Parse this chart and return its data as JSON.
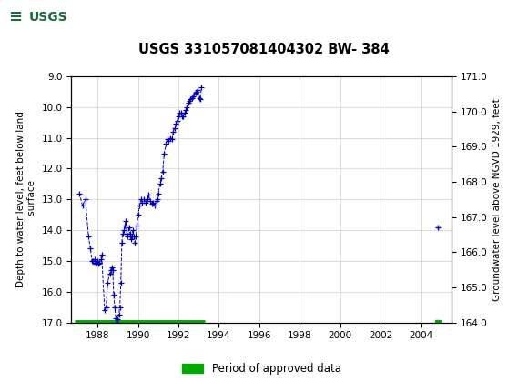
{
  "title": "USGS 331057081404302 BW- 384",
  "ylabel_left": "Depth to water level, feet below land\n surface",
  "ylabel_right": "Groundwater level above NGVD 1929, feet",
  "ylim_left": [
    17.0,
    9.0
  ],
  "ylim_right": [
    164.0,
    171.0
  ],
  "xlim": [
    1986.7,
    2005.5
  ],
  "xticks": [
    1988,
    1990,
    1992,
    1994,
    1996,
    1998,
    2000,
    2002,
    2004
  ],
  "yticks_left": [
    9.0,
    10.0,
    11.0,
    12.0,
    13.0,
    14.0,
    15.0,
    16.0,
    17.0
  ],
  "yticks_right": [
    164.0,
    165.0,
    166.0,
    167.0,
    168.0,
    169.0,
    170.0,
    171.0
  ],
  "line_color": "#0000bb",
  "approved_color": "#00aa00",
  "header_color": "#1a6b3c",
  "background_color": "#ffffff",
  "plot_bg_color": "#ffffff",
  "grid_color": "#cccccc",
  "legend_label": "Period of approved data",
  "approved_bar_x_start": 1986.85,
  "approved_bar_x_end": 1993.3,
  "approved_dot_x": 2004.85,
  "approved_bar_y": 17.0,
  "data_x": [
    1987.1,
    1987.25,
    1987.4,
    1987.55,
    1987.65,
    1987.72,
    1987.78,
    1987.84,
    1987.88,
    1987.92,
    1987.96,
    1988.0,
    1988.05,
    1988.1,
    1988.15,
    1988.2,
    1988.35,
    1988.42,
    1988.5,
    1988.6,
    1988.65,
    1988.7,
    1988.75,
    1988.8,
    1988.85,
    1988.9,
    1988.95,
    1989.0,
    1989.05,
    1989.1,
    1989.15,
    1989.2,
    1989.25,
    1989.3,
    1989.35,
    1989.4,
    1989.45,
    1989.5,
    1989.55,
    1989.6,
    1989.65,
    1989.7,
    1989.75,
    1989.8,
    1989.85,
    1989.9,
    1989.95,
    1990.0,
    1990.08,
    1990.15,
    1990.22,
    1990.3,
    1990.38,
    1990.45,
    1990.52,
    1990.6,
    1990.68,
    1990.75,
    1990.82,
    1990.9,
    1990.95,
    1991.0,
    1991.08,
    1991.15,
    1991.22,
    1991.3,
    1991.38,
    1991.45,
    1991.52,
    1991.6,
    1991.68,
    1991.75,
    1991.82,
    1991.88,
    1991.94,
    1992.0,
    1992.06,
    1992.12,
    1992.18,
    1992.24,
    1992.3,
    1992.36,
    1992.42,
    1992.48,
    1992.54,
    1992.6,
    1992.66,
    1992.72,
    1992.78,
    1992.84,
    1992.9,
    1992.96,
    1993.02,
    1993.08,
    1993.14,
    2004.85
  ],
  "data_y": [
    12.8,
    13.2,
    13.0,
    14.2,
    14.6,
    15.0,
    15.0,
    14.95,
    15.05,
    15.1,
    15.05,
    15.0,
    15.1,
    15.05,
    14.95,
    14.8,
    16.6,
    16.5,
    15.7,
    15.4,
    15.3,
    15.2,
    15.3,
    16.1,
    16.5,
    16.85,
    17.0,
    16.9,
    16.75,
    16.5,
    15.7,
    14.4,
    14.1,
    14.0,
    13.85,
    13.7,
    14.1,
    14.2,
    13.9,
    14.1,
    14.3,
    14.2,
    14.0,
    14.2,
    14.4,
    14.2,
    13.85,
    13.5,
    13.2,
    13.0,
    13.1,
    13.0,
    13.1,
    13.0,
    12.85,
    13.05,
    13.15,
    13.1,
    13.2,
    13.05,
    13.0,
    12.8,
    12.5,
    12.3,
    12.1,
    11.5,
    11.2,
    11.05,
    11.1,
    11.0,
    11.05,
    10.8,
    10.7,
    10.55,
    10.45,
    10.3,
    10.2,
    10.2,
    10.3,
    10.3,
    10.2,
    10.1,
    10.0,
    9.85,
    9.8,
    9.75,
    9.7,
    9.65,
    9.6,
    9.55,
    9.5,
    9.45,
    9.7,
    9.75,
    9.35,
    13.9
  ]
}
